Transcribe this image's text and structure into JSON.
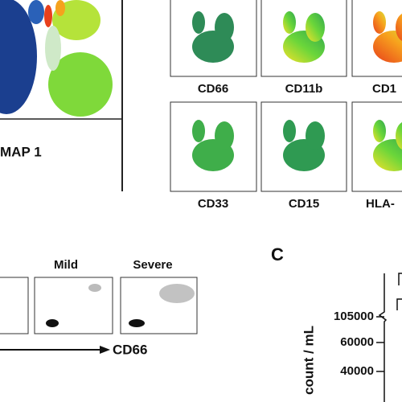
{
  "panel_a": {
    "umap_axis_label": "MAP 1",
    "markers": [
      "CD66",
      "CD11b",
      "CD1",
      "CD33",
      "CD15",
      "HLA-"
    ]
  },
  "panel_b": {
    "groups": [
      "Mild",
      "Severe"
    ],
    "axis_label": "CD66"
  },
  "panel_c": {
    "letter": "C",
    "y_label": "count / mL",
    "y_tick_labels": [
      "105000",
      "60000",
      "40000"
    ]
  }
}
